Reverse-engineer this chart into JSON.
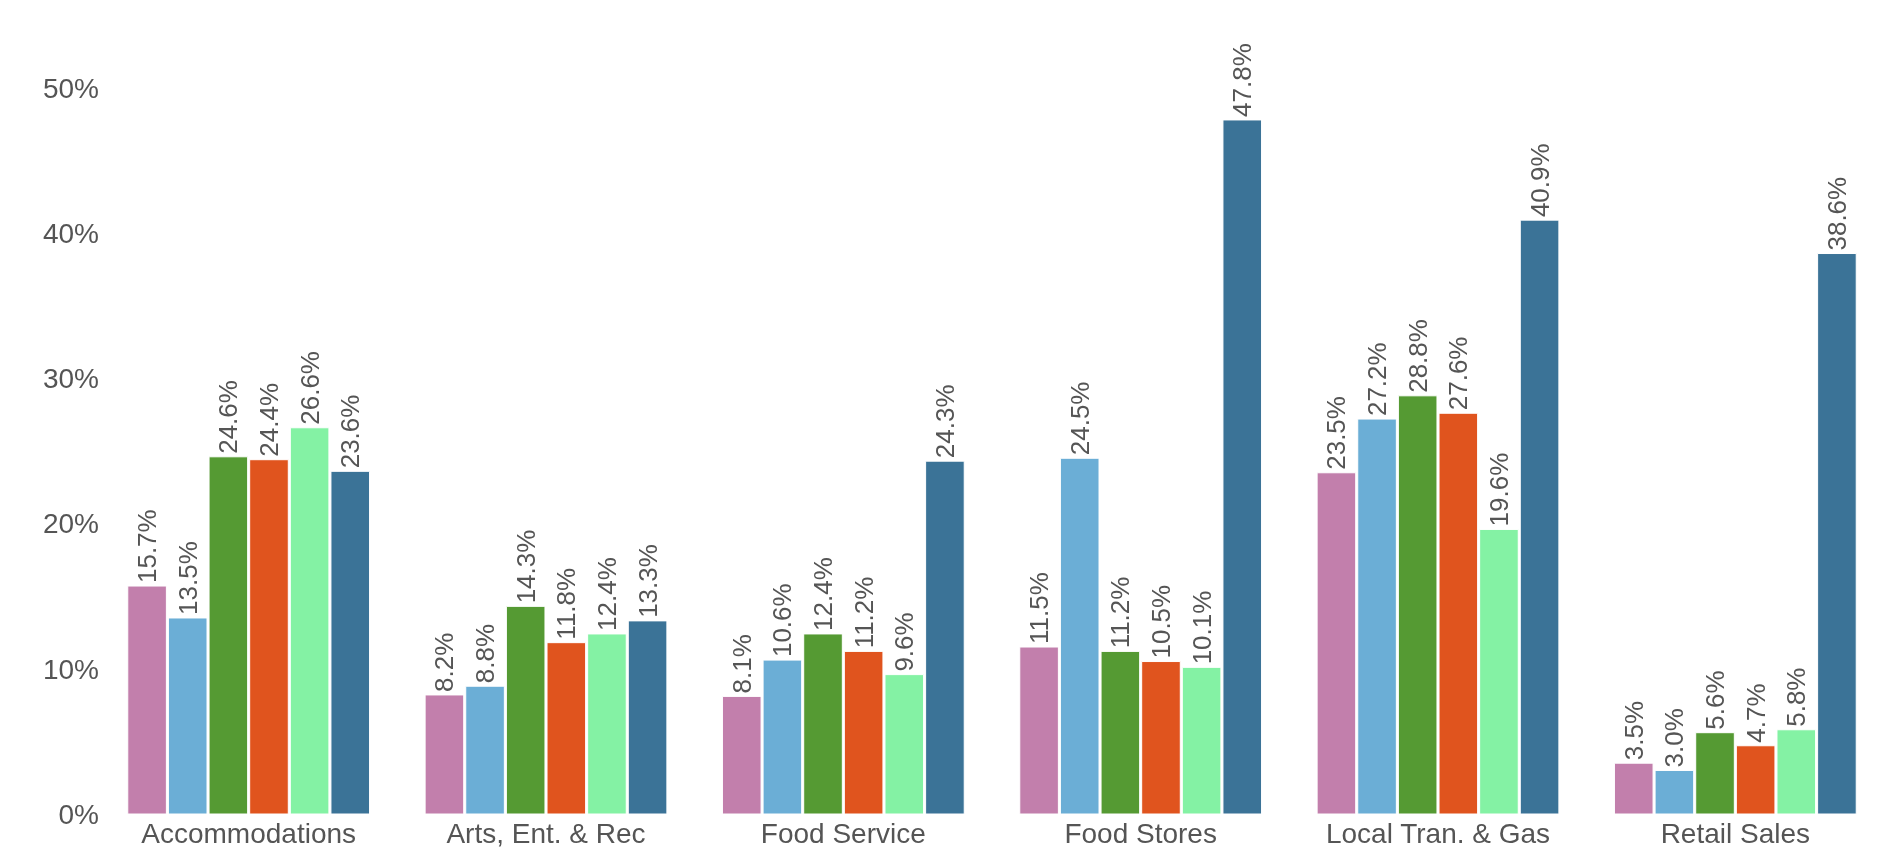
{
  "chart_data": {
    "type": "bar",
    "categories": [
      "Accommodations",
      "Arts, Ent. & Rec",
      "Food Service",
      "Food Stores",
      "Local Tran. & Gas",
      "Retail Sales"
    ],
    "series": [
      {
        "color": "#c27fac",
        "values": [
          15.7,
          8.2,
          8.1,
          11.5,
          23.5,
          3.5
        ],
        "value_labels": [
          "15.7%",
          "8.2%",
          "8.1%",
          "11.5%",
          "23.5%",
          "3.5%"
        ]
      },
      {
        "color": "#6baed6",
        "values": [
          13.5,
          8.8,
          10.6,
          24.5,
          27.2,
          3.0
        ],
        "value_labels": [
          "13.5%",
          "8.8%",
          "10.6%",
          "24.5%",
          "27.2%",
          "3.0%"
        ]
      },
      {
        "color": "#559a33",
        "values": [
          24.6,
          14.3,
          12.4,
          11.2,
          28.8,
          5.6
        ],
        "value_labels": [
          "24.6%",
          "14.3%",
          "12.4%",
          "11.2%",
          "28.8%",
          "5.6%"
        ]
      },
      {
        "color": "#e0541e",
        "values": [
          24.4,
          11.8,
          11.2,
          10.5,
          27.6,
          4.7
        ],
        "value_labels": [
          "24.4%",
          "11.8%",
          "11.2%",
          "10.5%",
          "27.6%",
          "4.7%"
        ]
      },
      {
        "color": "#84f2a4",
        "values": [
          26.6,
          12.4,
          9.6,
          10.1,
          19.6,
          5.8
        ],
        "value_labels": [
          "26.6%",
          "12.4%",
          "9.6%",
          "10.1%",
          "19.6%",
          "5.8%"
        ]
      },
      {
        "color": "#3b7397",
        "values": [
          23.6,
          13.3,
          24.3,
          47.8,
          40.9,
          38.6
        ],
        "value_labels": [
          "23.6%",
          "13.3%",
          "24.3%",
          "47.8%",
          "40.9%",
          "38.6%"
        ]
      }
    ],
    "ylim": [
      0,
      50
    ],
    "yticks": [
      {
        "value": 0,
        "label": "0%"
      },
      {
        "value": 10,
        "label": "10%"
      },
      {
        "value": 20,
        "label": "20%"
      },
      {
        "value": 30,
        "label": "30%"
      },
      {
        "value": 40,
        "label": "40%"
      },
      {
        "value": 50,
        "label": "50%"
      }
    ],
    "grid": false,
    "legend": false
  }
}
